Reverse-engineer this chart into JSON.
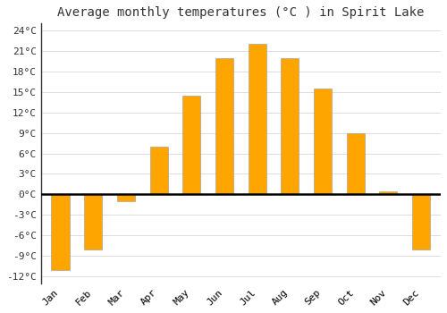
{
  "title": "Average monthly temperatures (°C ) in Spirit Lake",
  "months": [
    "Jan",
    "Feb",
    "Mar",
    "Apr",
    "May",
    "Jun",
    "Jul",
    "Aug",
    "Sep",
    "Oct",
    "Nov",
    "Dec"
  ],
  "values": [
    -11,
    -8,
    -1,
    7,
    14.5,
    20,
    22,
    20,
    15.5,
    9,
    0.5,
    -8
  ],
  "bar_color": "#FFA500",
  "bar_edge_color": "#999999",
  "background_color": "#FFFFFF",
  "grid_color": "#DDDDDD",
  "ylim": [
    -13,
    25
  ],
  "yticks": [
    -12,
    -9,
    -6,
    -3,
    0,
    3,
    6,
    9,
    12,
    15,
    18,
    21,
    24
  ],
  "ytick_labels": [
    "-12°C",
    "-9°C",
    "-6°C",
    "-3°C",
    "0°C",
    "3°C",
    "6°C",
    "9°C",
    "12°C",
    "15°C",
    "18°C",
    "21°C",
    "24°C"
  ],
  "title_fontsize": 10,
  "tick_fontsize": 8,
  "font_family": "monospace",
  "bar_width": 0.55
}
